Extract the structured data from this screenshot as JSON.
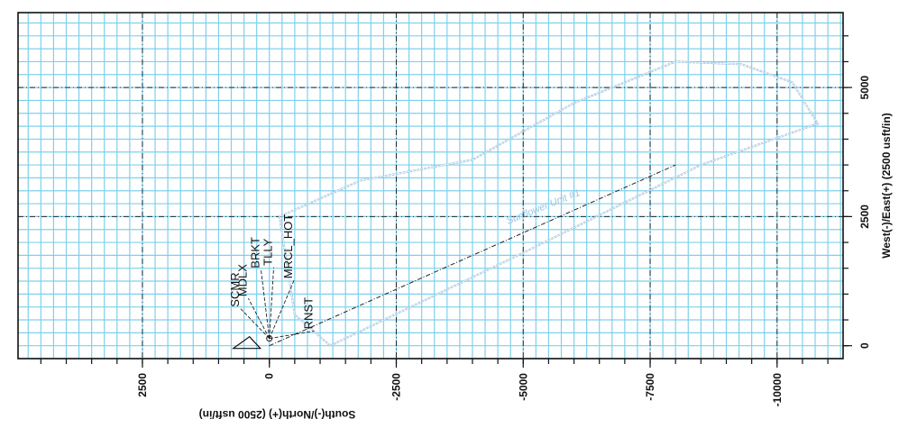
{
  "chart_data": {
    "type": "scatter",
    "title": "",
    "xlabel": "South(-)/North(+) (2500 usft/in)",
    "ylabel": "West(-)/East(+) (2500 usft/in)",
    "xlim": [
      4950,
      -11300
    ],
    "ylim": [
      -250,
      6450
    ],
    "x_ticks": [
      {
        "value": 2500,
        "label": "2500"
      },
      {
        "value": 0,
        "label": "0"
      },
      {
        "value": -2500,
        "label": "-2500"
      },
      {
        "value": -5000,
        "label": "-5000"
      },
      {
        "value": -7500,
        "label": "-7500"
      },
      {
        "value": -10000,
        "label": "-10000"
      }
    ],
    "y_ticks": [
      {
        "value": 0,
        "label": "0"
      },
      {
        "value": 2500,
        "label": "2500"
      },
      {
        "value": 5000,
        "label": "5000"
      }
    ],
    "minor_grid_step": 250,
    "grid": true,
    "wells": [
      {
        "name": "SCMR",
        "x": 600,
        "y": 750
      },
      {
        "name": "MDLX",
        "x": 450,
        "y": 950
      },
      {
        "name": "BRKT",
        "x": 200,
        "y": 1500
      },
      {
        "name": "TLLY",
        "x": -50,
        "y": 1550
      },
      {
        "name": "MRCL_HOT",
        "x": -450,
        "y": 1300
      },
      {
        "name": "RNST",
        "x": -850,
        "y": 320
      }
    ],
    "series": [
      {
        "name": "",
        "type": "polygon",
        "points": [
          {
            "x": -1200,
            "y": 0
          },
          {
            "x": -5000,
            "y": 1800
          },
          {
            "x": -8500,
            "y": 3500
          },
          {
            "x": -10800,
            "y": 4300
          },
          {
            "x": -10300,
            "y": 5100
          },
          {
            "x": -9300,
            "y": 5450
          },
          {
            "x": -8000,
            "y": 5500
          },
          {
            "x": -6000,
            "y": 4700
          },
          {
            "x": -4000,
            "y": 3600
          },
          {
            "x": -1800,
            "y": 3200
          },
          {
            "x": -200,
            "y": 2500
          },
          {
            "x": -500,
            "y": 600
          }
        ]
      },
      {
        "name": "",
        "type": "line",
        "points": [
          {
            "x": 0,
            "y": 0
          },
          {
            "x": -8000,
            "y": 3500
          }
        ]
      }
    ],
    "annotations": [
      {
        "text": "Sunflower Unit #1",
        "x": -4700,
        "y": 2350
      }
    ],
    "legend": "none"
  }
}
